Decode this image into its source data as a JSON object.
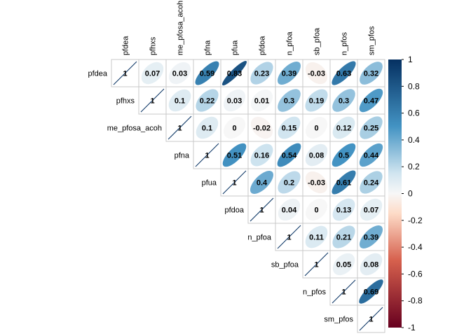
{
  "chart_data": {
    "type": "heatmap",
    "title": "",
    "method": "ellipse",
    "layout": "upper-triangle",
    "coefficients_shown": true,
    "variables": [
      "pfdea",
      "pfhxs",
      "me_pfosa_acoh",
      "pfna",
      "pfua",
      "pfdoa",
      "n_pfoa",
      "sb_pfoa",
      "n_pfos",
      "sm_pfos"
    ],
    "values": [
      [
        1,
        0.07,
        0.03,
        0.59,
        0.83,
        0.23,
        0.39,
        -0.03,
        0.63,
        0.32
      ],
      [
        null,
        1,
        0.1,
        0.22,
        0.03,
        0.01,
        0.3,
        0.19,
        0.3,
        0.47
      ],
      [
        null,
        null,
        1,
        0.1,
        0,
        -0.02,
        0.15,
        0,
        0.12,
        0.25
      ],
      [
        null,
        null,
        null,
        1,
        0.51,
        0.16,
        0.54,
        0.08,
        0.5,
        0.44
      ],
      [
        null,
        null,
        null,
        null,
        1,
        0.4,
        0.2,
        -0.03,
        0.61,
        0.24
      ],
      [
        null,
        null,
        null,
        null,
        null,
        1,
        0.04,
        0,
        0.13,
        0.07
      ],
      [
        null,
        null,
        null,
        null,
        null,
        null,
        1,
        0.11,
        0.21,
        0.39
      ],
      [
        null,
        null,
        null,
        null,
        null,
        null,
        null,
        1,
        0.05,
        0.08
      ],
      [
        null,
        null,
        null,
        null,
        null,
        null,
        null,
        null,
        1,
        0.69
      ],
      [
        null,
        null,
        null,
        null,
        null,
        null,
        null,
        null,
        null,
        1
      ]
    ],
    "colorbar": {
      "range": [
        -1,
        1
      ],
      "ticks": [
        "-1",
        "-0.8",
        "-0.6",
        "-0.4",
        "-0.2",
        "0",
        "0.2",
        "0.4",
        "0.6",
        "0.8",
        "1"
      ],
      "colors": {
        "neg_dark": "#67001f",
        "neg_mid": "#d6604d",
        "neg_light": "#fddbc7",
        "zero": "#f7f7f7",
        "pos_light": "#d1e5f0",
        "pos_mid": "#4393c3",
        "pos_dark": "#053061"
      }
    },
    "grid_color": "#c8c8c8",
    "diagonal_line_color": "#053061"
  }
}
